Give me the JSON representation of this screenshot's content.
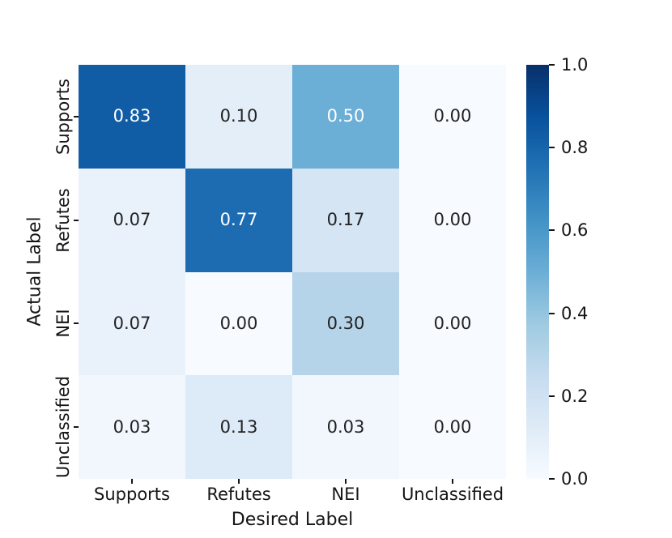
{
  "figure": {
    "background": "#ffffff",
    "text_color": "#151515"
  },
  "chart_data": {
    "type": "heatmap",
    "title": "",
    "xlabel": "Desired Label",
    "ylabel": "Actual Label",
    "x_categories": [
      "Supports",
      "Refutes",
      "NEI",
      "Unclassified"
    ],
    "y_categories": [
      "Supports",
      "Refutes",
      "NEI",
      "Unclassified"
    ],
    "values": [
      [
        0.83,
        0.1,
        0.5,
        0.0
      ],
      [
        0.07,
        0.77,
        0.17,
        0.0
      ],
      [
        0.07,
        0.0,
        0.3,
        0.0
      ],
      [
        0.03,
        0.13,
        0.03,
        0.0
      ]
    ],
    "value_decimals": 2,
    "grid": false,
    "annotation_text_colors": {
      "high": "#ffffff",
      "low": "#222222"
    },
    "colormap": {
      "name": "Blues",
      "anchors": [
        {
          "pos": 0.0,
          "color": "#f7fbff"
        },
        {
          "pos": 0.125,
          "color": "#deebf7"
        },
        {
          "pos": 0.25,
          "color": "#c6dbef"
        },
        {
          "pos": 0.375,
          "color": "#9ecae1"
        },
        {
          "pos": 0.5,
          "color": "#6baed6"
        },
        {
          "pos": 0.625,
          "color": "#4292c6"
        },
        {
          "pos": 0.75,
          "color": "#2171b5"
        },
        {
          "pos": 0.875,
          "color": "#08519c"
        },
        {
          "pos": 1.0,
          "color": "#08306b"
        }
      ]
    },
    "colorbar": {
      "position": "right",
      "vmin": 0.0,
      "vmax": 1.0,
      "ticks_top_to_bottom": [
        "1.0",
        "0.8",
        "0.6",
        "0.4",
        "0.2",
        "0.0"
      ]
    }
  }
}
